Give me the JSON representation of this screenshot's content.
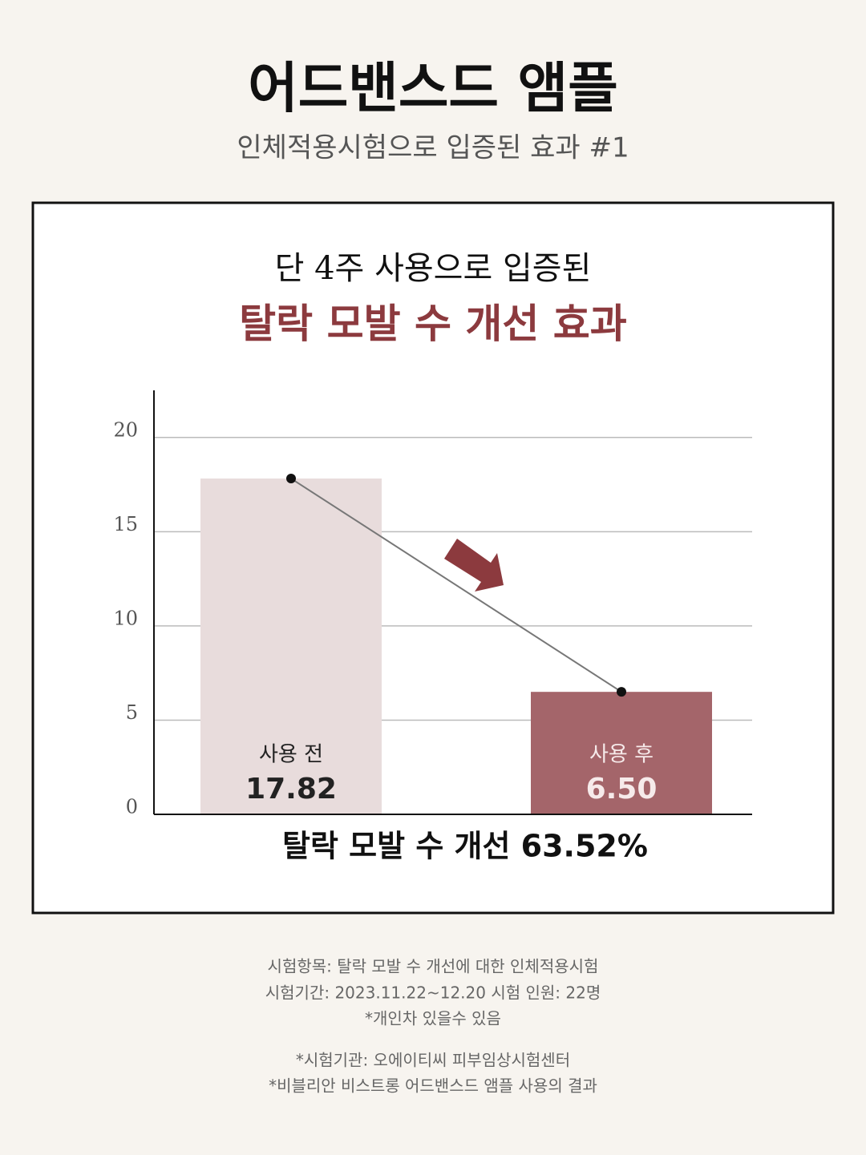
{
  "header": {
    "title": "어드밴스드 앰플",
    "subtitle": "인체적용시험으로 입증된 효과 #1"
  },
  "chart_data": {
    "type": "bar",
    "title": "단 4주 사용으로 입증된",
    "subtitle": "탈락 모발 수 개선 효과",
    "categories": [
      "사용 전",
      "사용 후"
    ],
    "values": [
      17.82,
      6.5
    ],
    "value_labels": [
      "17.82",
      "6.50"
    ],
    "colors": [
      "#e8dcdc",
      "#a4656a"
    ],
    "label_colors": [
      "#222222",
      "#f6eaea"
    ],
    "line": true,
    "line_color": "#777777",
    "ylim": [
      0,
      22.5
    ],
    "yticks": [
      0,
      5,
      10,
      15,
      20
    ],
    "grid": true,
    "annotation": "탈락 모발 수 개선 63.52%"
  },
  "notes": [
    "시험항목: 탈락 모발 수 개선에 대한 인체적용시험",
    "시험기간: 2023.11.22~12.20 시험 인원: 22명",
    "*개인차 있을수 있음",
    "*시험기관: 오에이티씨 피부임상시험센터",
    "*비블리안 비스트롱 어드밴스드 앰플 사용의 결과"
  ]
}
